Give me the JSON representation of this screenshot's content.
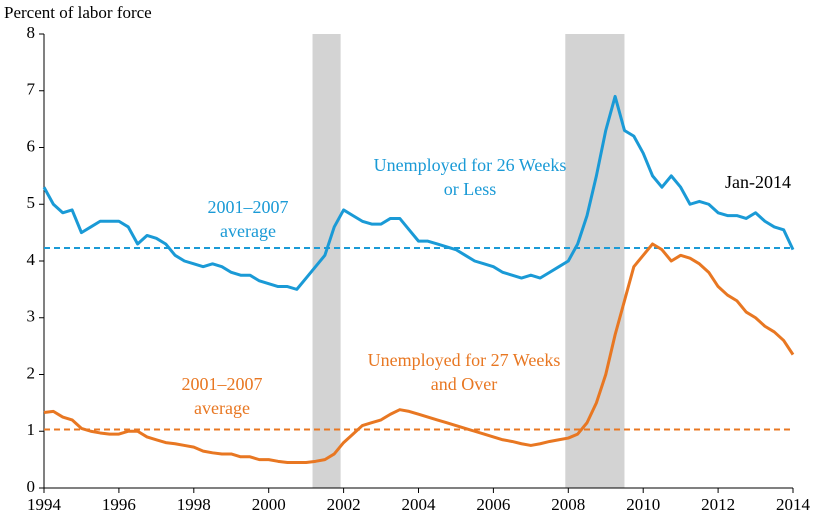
{
  "chart_data": {
    "type": "line",
    "y_label": "Percent of labor force",
    "x": [
      1994,
      1994.25,
      1994.5,
      1994.75,
      1995,
      1995.25,
      1995.5,
      1995.75,
      1996,
      1996.25,
      1996.5,
      1996.75,
      1997,
      1997.25,
      1997.5,
      1997.75,
      1998,
      1998.25,
      1998.5,
      1998.75,
      1999,
      1999.25,
      1999.5,
      1999.75,
      2000,
      2000.25,
      2000.5,
      2000.75,
      2001,
      2001.25,
      2001.5,
      2001.75,
      2002,
      2002.25,
      2002.5,
      2002.75,
      2003,
      2003.25,
      2003.5,
      2003.75,
      2004,
      2004.25,
      2004.5,
      2004.75,
      2005,
      2005.25,
      2005.5,
      2005.75,
      2006,
      2006.25,
      2006.5,
      2006.75,
      2007,
      2007.25,
      2007.5,
      2007.75,
      2008,
      2008.25,
      2008.5,
      2008.75,
      2009,
      2009.25,
      2009.5,
      2009.75,
      2010,
      2010.25,
      2010.5,
      2010.75,
      2011,
      2011.25,
      2011.5,
      2011.75,
      2012,
      2012.25,
      2012.5,
      2012.75,
      2013,
      2013.25,
      2013.5,
      2013.75,
      2014
    ],
    "series": [
      {
        "name": "Unemployed for 26 Weeks or Less",
        "color": "#1a9ad6",
        "values": [
          5.3,
          5.0,
          4.85,
          4.9,
          4.5,
          4.6,
          4.7,
          4.7,
          4.7,
          4.6,
          4.3,
          4.45,
          4.4,
          4.3,
          4.1,
          4.0,
          3.95,
          3.9,
          3.95,
          3.9,
          3.8,
          3.75,
          3.75,
          3.65,
          3.6,
          3.55,
          3.55,
          3.5,
          3.7,
          3.9,
          4.1,
          4.6,
          4.9,
          4.8,
          4.7,
          4.65,
          4.65,
          4.75,
          4.75,
          4.55,
          4.35,
          4.35,
          4.3,
          4.25,
          4.2,
          4.1,
          4.0,
          3.95,
          3.9,
          3.8,
          3.75,
          3.7,
          3.75,
          3.7,
          3.8,
          3.9,
          4.0,
          4.3,
          4.8,
          5.5,
          6.3,
          6.9,
          6.3,
          6.2,
          5.9,
          5.5,
          5.3,
          5.5,
          5.3,
          5.0,
          5.05,
          5.0,
          4.85,
          4.8,
          4.8,
          4.75,
          4.85,
          4.7,
          4.6,
          4.55,
          4.2
        ]
      },
      {
        "name": "Unemployed for 27 Weeks and Over",
        "color": "#e87722",
        "values": [
          1.33,
          1.35,
          1.25,
          1.2,
          1.05,
          1.0,
          0.97,
          0.95,
          0.95,
          1.0,
          1.0,
          0.9,
          0.85,
          0.8,
          0.78,
          0.75,
          0.72,
          0.65,
          0.62,
          0.6,
          0.6,
          0.55,
          0.55,
          0.5,
          0.5,
          0.47,
          0.45,
          0.45,
          0.45,
          0.47,
          0.5,
          0.6,
          0.8,
          0.95,
          1.1,
          1.15,
          1.2,
          1.3,
          1.38,
          1.35,
          1.3,
          1.25,
          1.2,
          1.15,
          1.1,
          1.05,
          1.0,
          0.95,
          0.9,
          0.85,
          0.82,
          0.78,
          0.75,
          0.78,
          0.82,
          0.85,
          0.88,
          0.95,
          1.15,
          1.5,
          2.0,
          2.7,
          3.3,
          3.9,
          4.1,
          4.3,
          4.2,
          4.0,
          4.1,
          4.05,
          3.95,
          3.8,
          3.55,
          3.4,
          3.3,
          3.1,
          3.0,
          2.85,
          2.75,
          2.6,
          2.35
        ]
      }
    ],
    "series_labels": [
      [
        "Unemployed for 26 Weeks",
        "or Less"
      ],
      [
        "Unemployed for 27 Weeks",
        "and Over"
      ]
    ],
    "averages": [
      {
        "value": 4.23,
        "color": "#1a9ad6",
        "label": [
          "2001–2007",
          "average"
        ]
      },
      {
        "value": 1.03,
        "color": "#e87722",
        "label": [
          "2001–2007",
          "average"
        ]
      }
    ],
    "recessions": [
      [
        2001.17,
        2001.92
      ],
      [
        2007.92,
        2009.5
      ]
    ],
    "end_label": "Jan-2014",
    "xlim": [
      1994,
      2014
    ],
    "xticks": [
      1994,
      1996,
      1998,
      2000,
      2002,
      2004,
      2006,
      2008,
      2010,
      2012,
      2014
    ],
    "ylim": [
      0,
      8
    ],
    "yticks": [
      0,
      1,
      2,
      3,
      4,
      5,
      6,
      7,
      8
    ]
  }
}
